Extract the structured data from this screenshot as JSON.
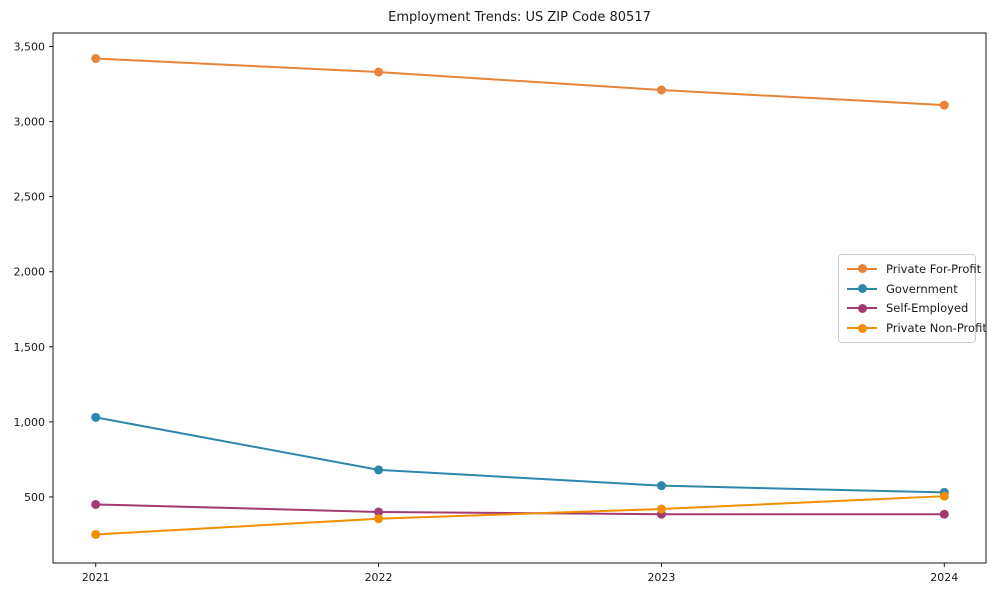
{
  "title": "Employment Trends: US ZIP Code 80517",
  "chart_data": {
    "type": "line",
    "x": [
      2021,
      2022,
      2023,
      2024
    ],
    "x_tick_labels": [
      "2021",
      "2022",
      "2023",
      "2024"
    ],
    "series": [
      {
        "name": "Private For-Profit",
        "color": "#E8833A",
        "values": [
          3420,
          3330,
          3210,
          3110
        ]
      },
      {
        "name": "Government",
        "color": "#2E86AB",
        "values": [
          1030,
          680,
          575,
          530
        ]
      },
      {
        "name": "Self-Employed",
        "color": "#A23B72",
        "values": [
          450,
          400,
          385,
          385
        ]
      },
      {
        "name": "Private Non-Profit",
        "color": "#F18F01",
        "values": [
          250,
          355,
          420,
          505
        ]
      }
    ],
    "title": "Employment Trends: US ZIP Code 80517",
    "xlabel": "",
    "ylabel": "",
    "ylim": [
      60,
      3590
    ],
    "yticks": [
      500,
      1000,
      1500,
      2000,
      2500,
      3000,
      3500
    ],
    "ytick_labels": [
      "500",
      "1,000",
      "1,500",
      "2,000",
      "2,500",
      "3,000",
      "3,500"
    ],
    "grid": false,
    "legend_position": "center right",
    "marker": "circle",
    "line_width": 2,
    "marker_radius": 4.5,
    "axis_color": "#1a1a1a"
  }
}
